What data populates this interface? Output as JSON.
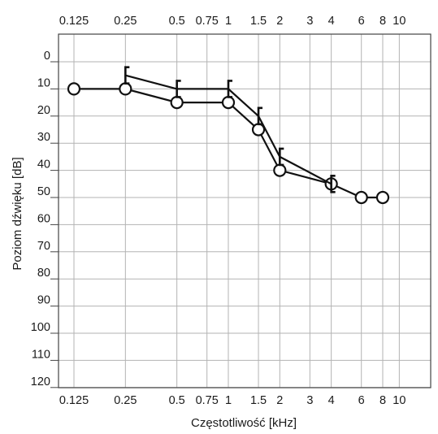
{
  "chart_data": {
    "type": "line",
    "title": "",
    "xlabel": "Częstotliwość [kHz]",
    "ylabel": "Poziom dźwięku [dB]",
    "x_scale": "log2",
    "xlim": [
      0.125,
      10
    ],
    "ylim": [
      0,
      120
    ],
    "y_inverted": true,
    "grid": true,
    "x_ticks": [
      {
        "value": 0.125,
        "label": "0.125"
      },
      {
        "value": 0.25,
        "label": "0.25"
      },
      {
        "value": 0.5,
        "label": "0.5"
      },
      {
        "value": 0.75,
        "label": "0.75"
      },
      {
        "value": 1,
        "label": "1"
      },
      {
        "value": 1.5,
        "label": "1.5"
      },
      {
        "value": 2,
        "label": "2"
      },
      {
        "value": 3,
        "label": "3"
      },
      {
        "value": 4,
        "label": "4"
      },
      {
        "value": 6,
        "label": "6"
      },
      {
        "value": 8,
        "label": "8"
      },
      {
        "value": 10,
        "label": "10"
      }
    ],
    "y_ticks": [
      {
        "value": 0,
        "label": "0"
      },
      {
        "value": 10,
        "label": "10"
      },
      {
        "value": 20,
        "label": "20"
      },
      {
        "value": 30,
        "label": "30"
      },
      {
        "value": 40,
        "label": "40"
      },
      {
        "value": 50,
        "label": "50"
      },
      {
        "value": 60,
        "label": "60"
      },
      {
        "value": 70,
        "label": "70"
      },
      {
        "value": 80,
        "label": "80"
      },
      {
        "value": 90,
        "label": "90"
      },
      {
        "value": 100,
        "label": "100"
      },
      {
        "value": 110,
        "label": "110"
      },
      {
        "value": 120,
        "label": "120"
      }
    ],
    "series": [
      {
        "marker": "circle",
        "color": "#111111",
        "x": [
          0.125,
          0.25,
          0.5,
          1,
          1.5,
          2,
          4,
          6,
          8
        ],
        "y": [
          10,
          10,
          15,
          15,
          25,
          40,
          45,
          50,
          50
        ]
      },
      {
        "marker": "bracket",
        "color": "#111111",
        "x": [
          0.25,
          0.5,
          1,
          1.5,
          2,
          4
        ],
        "y": [
          5,
          10,
          10,
          20,
          35,
          45
        ]
      }
    ]
  }
}
